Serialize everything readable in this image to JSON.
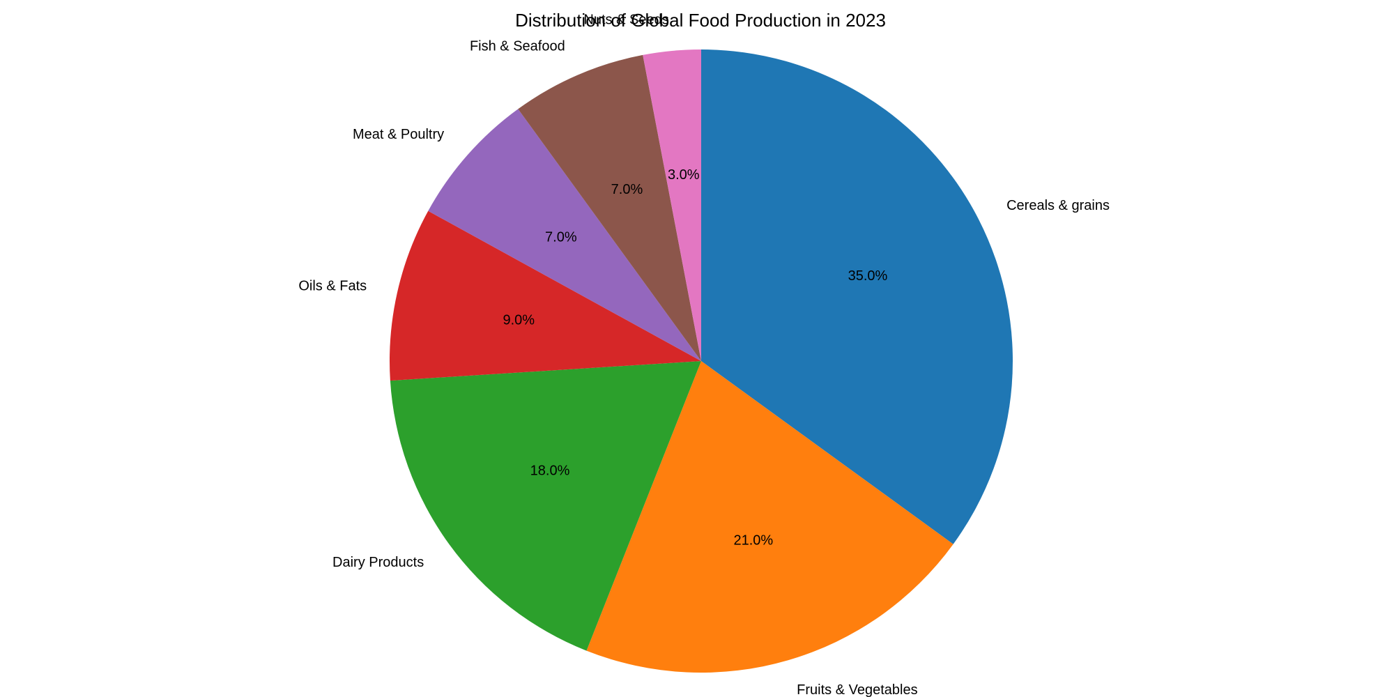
{
  "chart_data": {
    "type": "pie",
    "title": "Distribution of Global Food Production in 2023",
    "start_angle_deg": 90,
    "direction": "clockwise",
    "slices": [
      {
        "label": "Cereals & grains",
        "value": 35.0,
        "pct_label": "35.0%",
        "color": "#1f77b4"
      },
      {
        "label": "Fruits & Vegetables",
        "value": 21.0,
        "pct_label": "21.0%",
        "color": "#ff7f0e"
      },
      {
        "label": "Dairy Products",
        "value": 18.0,
        "pct_label": "18.0%",
        "color": "#2ca02c"
      },
      {
        "label": "Oils & Fats",
        "value": 9.0,
        "pct_label": "9.0%",
        "color": "#d62728"
      },
      {
        "label": "Meat & Poultry",
        "value": 7.0,
        "pct_label": "7.0%",
        "color": "#9467bd"
      },
      {
        "label": "Fish & Seafood",
        "value": 7.0,
        "pct_label": "7.0%",
        "color": "#8c564b"
      },
      {
        "label": "Nuts & Seeds",
        "value": 3.0,
        "pct_label": "3.0%",
        "color": "#e377c2"
      }
    ]
  }
}
